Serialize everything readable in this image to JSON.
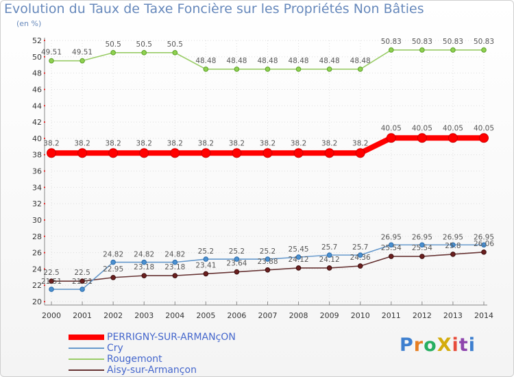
{
  "title": "Evolution du Taux de Taxe Foncière sur les Propriétés Non Bâties",
  "unit_label": "(en %)",
  "logo_text": "ProXiti",
  "chart_data": {
    "type": "line",
    "title": "Evolution du Taux de Taxe Foncière sur les Propriétés Non Bâties",
    "ylabel": "(en %)",
    "xlabel": "",
    "categories": [
      "2000",
      "2001",
      "2002",
      "2003",
      "2004",
      "2005",
      "2006",
      "2007",
      "2008",
      "2009",
      "2010",
      "2011",
      "2012",
      "2013",
      "2014"
    ],
    "ylim": [
      20,
      52
    ],
    "yticks": [
      20,
      22,
      24,
      26,
      28,
      30,
      32,
      34,
      36,
      38,
      40,
      42,
      44,
      46,
      48,
      50,
      52
    ],
    "grid": true,
    "legend_position": "bottom-left",
    "series": [
      {
        "name": "PERRIGNY-SUR-ARMANçON",
        "color": "#ff0000",
        "values": [
          38.2,
          38.2,
          38.2,
          38.2,
          38.2,
          38.2,
          38.2,
          38.2,
          38.2,
          38.2,
          38.2,
          40.05,
          40.05,
          40.05,
          40.05
        ],
        "labels": [
          "38.2",
          "38.2",
          "38.2",
          "38.2",
          "38.2",
          "38.2",
          "38.2",
          "38.2",
          "38.2",
          "38.2",
          "38.2",
          "40.05",
          "40.05",
          "40.05",
          "40.05"
        ]
      },
      {
        "name": "Cry",
        "color": "#6699cc",
        "values": [
          21.51,
          21.51,
          24.82,
          24.82,
          24.82,
          25.2,
          25.2,
          25.2,
          25.45,
          25.7,
          25.7,
          26.95,
          26.95,
          26.95,
          26.95
        ],
        "labels": [
          "21.51",
          "21.51",
          "24.82",
          "24.82",
          "24.82",
          "25.2",
          "25.2",
          "25.2",
          "25.45",
          "25.7",
          "25.7",
          "26.95",
          "26.95",
          "26.95",
          "26.95"
        ]
      },
      {
        "name": "Rougemont",
        "color": "#99cc66",
        "values": [
          49.51,
          49.51,
          50.5,
          50.5,
          50.5,
          48.48,
          48.48,
          48.48,
          48.48,
          48.48,
          48.48,
          50.83,
          50.83,
          50.83,
          50.83
        ],
        "labels": [
          "49.51",
          "49.51",
          "50.5",
          "50.5",
          "50.5",
          "48.48",
          "48.48",
          "48.48",
          "48.48",
          "48.48",
          "48.48",
          "50.83",
          "50.83",
          "50.83",
          "50.83"
        ]
      },
      {
        "name": "Aisy-sur-Armançon",
        "color": "#663333",
        "values": [
          22.5,
          22.5,
          22.95,
          23.18,
          23.18,
          23.41,
          23.64,
          23.88,
          24.12,
          24.12,
          24.36,
          25.54,
          25.54,
          25.8,
          26.06
        ],
        "labels": [
          "22.5",
          "22.5",
          "22.95",
          "23.18",
          "23.18",
          "23.41",
          "23.64",
          "23.88",
          "24.12",
          "24.12",
          "24.36",
          "25.54",
          "25.54",
          "25.8",
          "26.06"
        ]
      }
    ]
  }
}
